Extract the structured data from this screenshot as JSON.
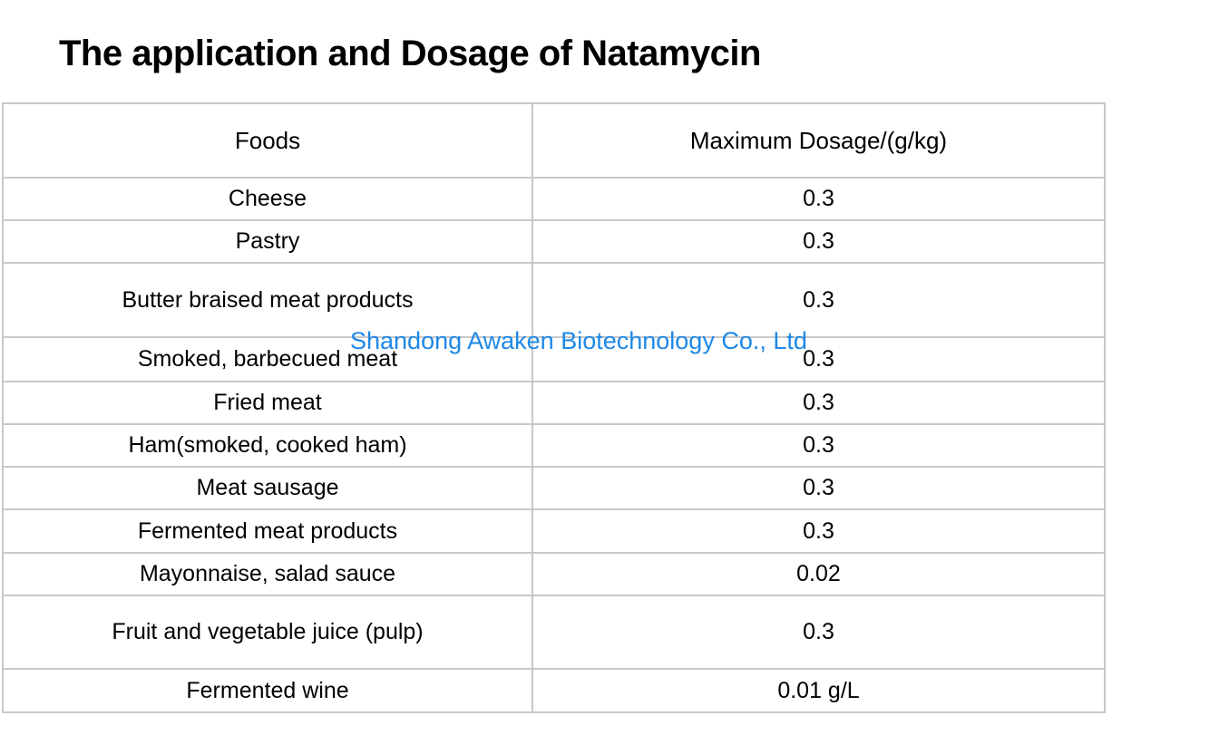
{
  "title": "The application and Dosage of Natamycin",
  "watermark": "Shandong Awaken Biotechnology Co., Ltd",
  "table": {
    "columns": [
      "Foods",
      "Maximum Dosage/(g/kg)"
    ],
    "rows": [
      {
        "food": "Cheese",
        "dosage": "0.3"
      },
      {
        "food": "Pastry",
        "dosage": "0.3"
      },
      {
        "food": "Butter braised meat products",
        "dosage": "0.3"
      },
      {
        "food": "Smoked, barbecued meat",
        "dosage": "0.3"
      },
      {
        "food": "Fried meat",
        "dosage": "0.3"
      },
      {
        "food": "Ham(smoked, cooked ham)",
        "dosage": "0.3"
      },
      {
        "food": "Meat sausage",
        "dosage": "0.3"
      },
      {
        "food": "Fermented meat products",
        "dosage": "0.3"
      },
      {
        "food": "Mayonnaise, salad sauce",
        "dosage": "0.02"
      },
      {
        "food": "Fruit and vegetable juice (pulp)",
        "dosage": "0.3"
      },
      {
        "food": "Fermented wine",
        "dosage": "0.01 g/L"
      }
    ]
  },
  "colors": {
    "watermark_blue": "#1E88E5",
    "border_gray": "#C8C8C8",
    "text": "#000000",
    "background": "#FFFFFF"
  }
}
